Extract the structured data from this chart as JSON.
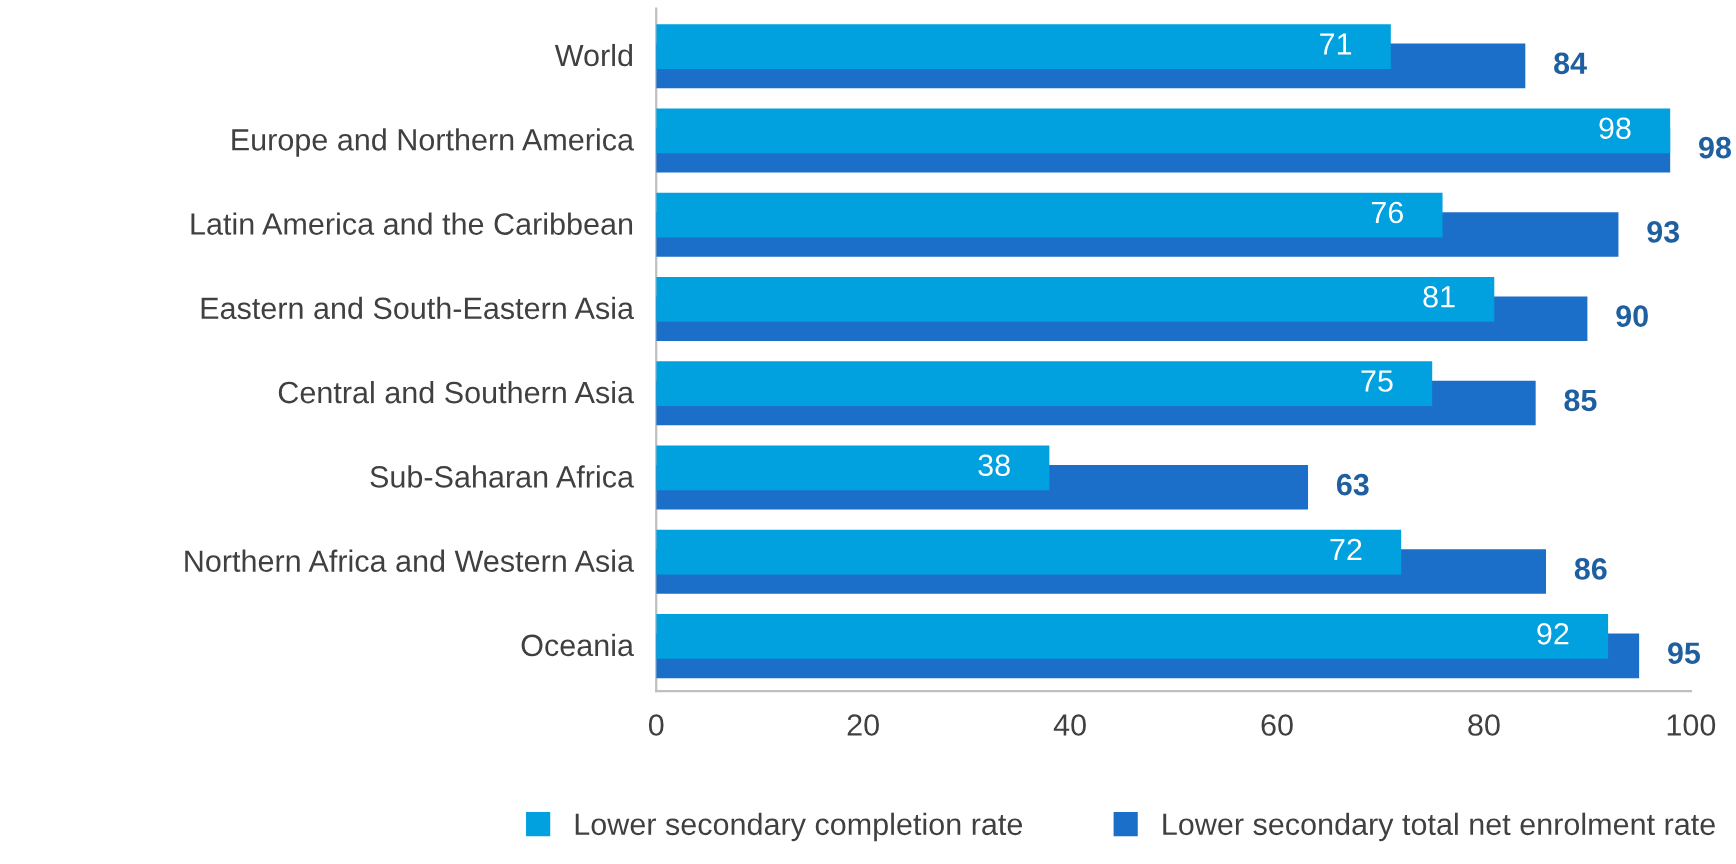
{
  "chart_data": {
    "type": "bar",
    "orientation": "horizontal",
    "categories": [
      "World",
      "Europe and Northern America",
      "Latin America and the Caribbean",
      "Eastern and South-Eastern Asia",
      "Central and Southern Asia",
      "Sub-Saharan Africa",
      "Northern Africa and Western Asia",
      "Oceania"
    ],
    "series": [
      {
        "name": "Lower secondary completion rate",
        "color": "#00a1de",
        "values": [
          71,
          98,
          76,
          81,
          75,
          38,
          72,
          92
        ]
      },
      {
        "name": "Lower secondary total net enrolment rate",
        "color": "#1b6fc8",
        "values": [
          84,
          98,
          93,
          90,
          85,
          63,
          86,
          95
        ]
      }
    ],
    "xlim": [
      0,
      100
    ],
    "xticks": [
      0,
      20,
      40,
      60,
      80,
      100
    ],
    "data_labels": true,
    "grid": false,
    "legend": "bottom"
  }
}
